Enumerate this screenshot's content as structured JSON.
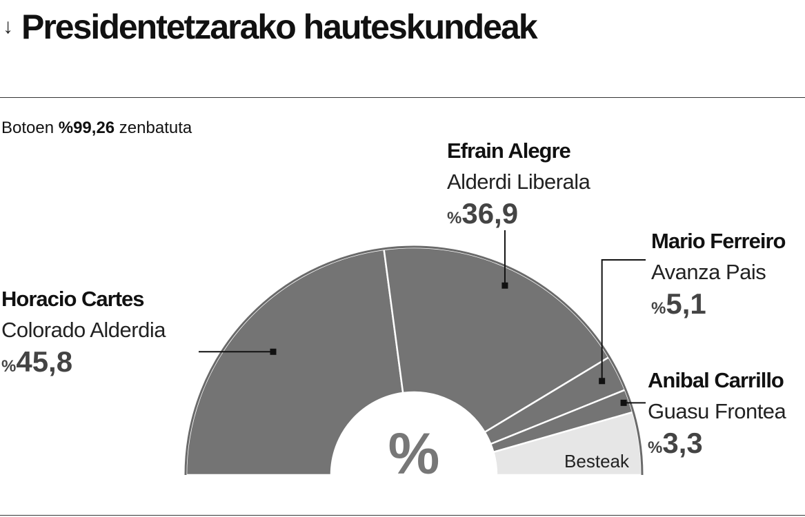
{
  "header": {
    "arrow": "↓",
    "title": "Presidentetzarako hauteskundeak"
  },
  "subtitle": {
    "prefix": "Botoen ",
    "value": "%99,26",
    "suffix": " zenbatuta"
  },
  "chart_data": {
    "type": "pie",
    "shape": "half-donut",
    "center_label": "%",
    "slices": [
      {
        "name": "Horacio Cartes",
        "party": "Colorado Alderdia",
        "value": 45.8,
        "pct_symbol": "%",
        "pct_text": "45,8",
        "color": "#747474"
      },
      {
        "name": "Efrain Alegre",
        "party": "Alderdi Liberala",
        "value": 36.9,
        "pct_symbol": "%",
        "pct_text": "36,9",
        "color": "#747474"
      },
      {
        "name": "Mario Ferreiro",
        "party": "Avanza Pais",
        "value": 5.1,
        "pct_symbol": "%",
        "pct_text": "5,1",
        "color": "#747474"
      },
      {
        "name": "Anibal Carrillo",
        "party": "Guasu Frontea",
        "value": 3.3,
        "pct_symbol": "%",
        "pct_text": "3,3",
        "color": "#747474"
      },
      {
        "name": "Besteak",
        "value": 8.9,
        "color": "#e6e6e6"
      }
    ]
  }
}
